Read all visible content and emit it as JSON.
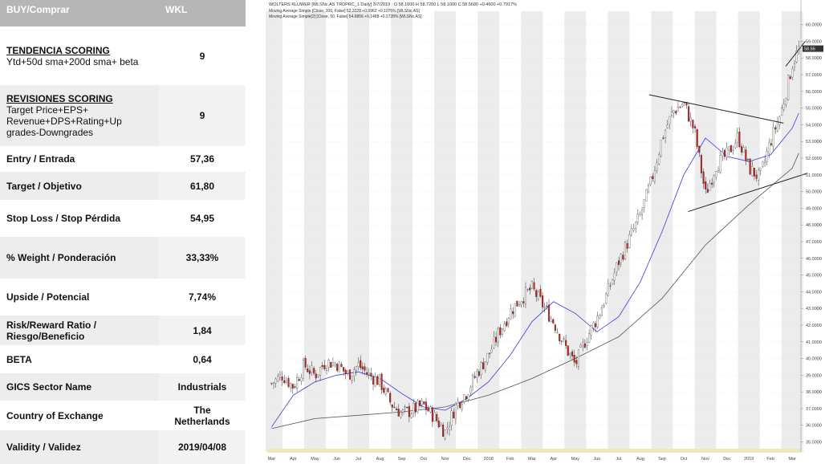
{
  "table": {
    "header": {
      "label": "BUY/Comprar",
      "ticker": "WKL"
    },
    "rows": [
      {
        "title": "TENDENCIA SCORING",
        "desc": "Ytd+50d sma+200d sma+ beta",
        "value": "9"
      },
      {
        "title": "REVISIONES SCORING",
        "desc": "Target Price+EPS+\nRevenue+DPS+Rating+Up\ngrades-Downgrades",
        "value": "9"
      },
      {
        "label": "Entry / Entrada",
        "value": "57,36"
      },
      {
        "label": "Target / Objetivo",
        "value": "61,80"
      },
      {
        "label": "Stop Loss / Stop Pérdida",
        "value": "54,95"
      },
      {
        "label": "% Weight / Ponderación",
        "value": "33,33%"
      },
      {
        "label": "Upside / Potencial",
        "value": "7,74%"
      },
      {
        "label": "Risk/Reward Ratio / Riesgo/Beneficio",
        "value": "1,84"
      },
      {
        "label": "BETA",
        "value": "0,64"
      },
      {
        "label": "GICS Sector Name",
        "value": "Industrials"
      },
      {
        "label": "Country of Exchange",
        "value": "The Netherlands"
      },
      {
        "label": "Validity / Validez",
        "value": "2019/04/08"
      }
    ]
  },
  "chart_data": {
    "type": "line",
    "title": "WOLTERS KLUWER [WLSNc.AS TRDPRC_1 Daily] 3/7/2019 : O 58.1000 H 58.7200 L 58.1000 C 58.5600 +0.4600 +0.7917%",
    "legend": [
      "Moving Average Simple [Close, 200, False] 52.3228 +0.0962 +0.1076% [WLSNc.AS]",
      "Moving Average Simple[2] [Close, 50, False] 54.6856 +0.1488 +0.2728% [WLSNc.AS]"
    ],
    "x_labels": [
      "Mar",
      "Apr",
      "May",
      "Jun",
      "Jul",
      "Aug",
      "Sep",
      "Oct",
      "Nov",
      "Dec",
      "2018",
      "Feb",
      "Mar",
      "Apr",
      "May",
      "Jun",
      "Jul",
      "Aug",
      "Sep",
      "Oct",
      "Nov",
      "Dec",
      "2019",
      "Feb",
      "Mar"
    ],
    "y_ticks": [
      35,
      36,
      37,
      38,
      39,
      40,
      41,
      42,
      43,
      44,
      45,
      46,
      47,
      48,
      49,
      50,
      51,
      52,
      53,
      54,
      55,
      56,
      57,
      58,
      59,
      60
    ],
    "ylim": [
      34.4,
      60.8
    ],
    "last_price": "58.56",
    "series": [
      {
        "type": "candlestick",
        "x": [
          0,
          0.5,
          1,
          1.5,
          2,
          2.5,
          3,
          3.5,
          4,
          4.5,
          5,
          5.5,
          6,
          6.5,
          7,
          7.5,
          8,
          8.5,
          9,
          9.5,
          10,
          10.5,
          11,
          11.5,
          12,
          12.5,
          13,
          13.5,
          14,
          14.5,
          15,
          15.5,
          16,
          16.5,
          17,
          17.5,
          18,
          18.5,
          19,
          19.5,
          20,
          20.5,
          21,
          21.5,
          22,
          22.5,
          23,
          23.5,
          24,
          24.3
        ],
        "close": [
          38.5,
          39.0,
          38.3,
          39.6,
          39.0,
          39.8,
          39.7,
          39.0,
          39.6,
          39.0,
          38.6,
          37.3,
          36.7,
          36.9,
          37.2,
          36.5,
          35.6,
          37.2,
          38.0,
          39.2,
          40.2,
          41.6,
          42.8,
          43.6,
          44.2,
          43.2,
          42.2,
          40.8,
          39.6,
          41.2,
          42.4,
          44.0,
          45.8,
          47.2,
          48.6,
          50.6,
          53.2,
          54.8,
          55.3,
          53.6,
          49.8,
          51.6,
          52.2,
          53.3,
          51.4,
          50.8,
          53.0,
          54.8,
          57.6,
          58.56
        ]
      },
      {
        "name": "Moving Average Simple [Close, 200, False]",
        "x": [
          0,
          2,
          4,
          6,
          8,
          10,
          12,
          13,
          14,
          16,
          18,
          20,
          22,
          24,
          24.3
        ],
        "values": [
          35.8,
          36.4,
          36.6,
          36.8,
          37.1,
          37.8,
          38.8,
          39.4,
          40.0,
          41.3,
          43.6,
          46.8,
          49.2,
          51.4,
          52.3
        ]
      },
      {
        "name": "Moving Average Simple[2] [Close, 50, False]",
        "x": [
          0,
          1,
          2,
          3,
          4,
          5,
          6,
          7,
          8,
          9,
          10,
          11,
          12,
          13,
          14,
          15,
          16,
          17,
          18,
          19,
          20,
          21,
          22,
          23,
          24,
          24.3
        ],
        "values": [
          35.9,
          37.8,
          38.6,
          39.0,
          39.2,
          38.8,
          37.9,
          37.1,
          36.9,
          37.6,
          38.6,
          40.2,
          42.2,
          43.4,
          42.7,
          41.6,
          42.5,
          44.6,
          47.6,
          51.0,
          53.2,
          52.1,
          51.8,
          52.2,
          53.8,
          54.7
        ]
      }
    ],
    "trendlines": [
      {
        "from": [
          17.4,
          55.8
        ],
        "to": [
          23.6,
          54.1
        ]
      },
      {
        "from": [
          19.2,
          48.8
        ],
        "to": [
          24.7,
          51.1
        ]
      },
      {
        "from": [
          23.7,
          57.5
        ],
        "to": [
          24.6,
          59.0
        ]
      }
    ]
  }
}
